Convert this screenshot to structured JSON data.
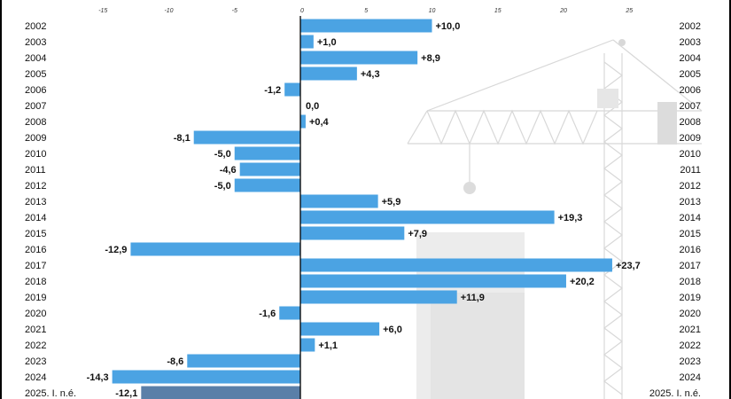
{
  "chart_data": {
    "type": "bar",
    "orientation": "horizontal",
    "title": "",
    "xlabel": "",
    "ylabel": "",
    "x_ticks": [
      -15,
      -10,
      -5,
      0,
      5,
      10,
      15,
      20,
      25
    ],
    "xlim": [
      -15,
      25
    ],
    "grid": false,
    "colors": {
      "bar": "#4ba3e3",
      "bar_estimate": "#5a7fa8",
      "axis": "#000000"
    },
    "categories": [
      "2002",
      "2003",
      "2004",
      "2005",
      "2006",
      "2007",
      "2008",
      "2009",
      "2010",
      "2011",
      "2012",
      "2013",
      "2014",
      "2015",
      "2016",
      "2017",
      "2018",
      "2019",
      "2020",
      "2021",
      "2022",
      "2023",
      "2024",
      "2025. I. n.é."
    ],
    "values": [
      10.0,
      1.0,
      8.9,
      4.3,
      -1.2,
      0.0,
      0.4,
      -8.1,
      -5.0,
      -4.6,
      -5.0,
      5.9,
      19.3,
      7.9,
      -12.9,
      23.7,
      20.2,
      11.9,
      -1.6,
      6.0,
      1.1,
      -8.6,
      -14.3,
      -12.1
    ],
    "value_labels": [
      "+10,0",
      "+1,0",
      "+8,9",
      "+4,3",
      "-1,2",
      "0,0",
      "+0,4",
      "-8,1",
      "-5,0",
      "-4,6",
      "-5,0",
      "+5,9",
      "+19,3",
      "+7,9",
      "-12,9",
      "+23,7",
      "+20,2",
      "+11,9",
      "-1,6",
      "+6,0",
      "+1,1",
      "-8,6",
      "-14,3",
      "-12,1"
    ],
    "estimate_category_index": 23,
    "background_icon": "construction-crane-icon"
  }
}
